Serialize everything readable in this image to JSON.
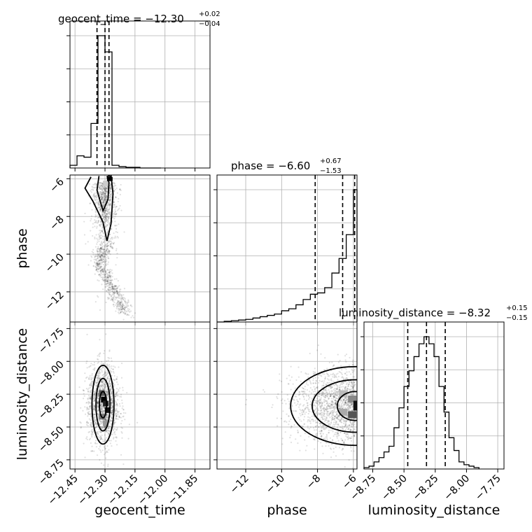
{
  "chart_data": {
    "type": "corner",
    "parameters": [
      {
        "name": "geocent_time",
        "axis_label": "geocent_time",
        "range": [
          -12.475,
          -11.775
        ],
        "ticks": [
          -12.45,
          -12.3,
          -12.15,
          -12.0,
          -11.85
        ],
        "tick_labels": [
          "−12.45",
          "−12.30",
          "−12.15",
          "−12.00",
          "−11.85"
        ],
        "title_main": "geocent_time = −12.30",
        "title_plus": "+0.02",
        "title_minus": "−0.04",
        "quantiles": [
          -12.34,
          -12.3,
          -12.28
        ],
        "histogram": {
          "edges": [
            -12.475,
            -12.44,
            -12.405,
            -12.37,
            -12.335,
            -12.3,
            -12.265,
            -12.23,
            -12.195,
            -12.16,
            -12.125,
            -12.09,
            -12.055,
            -12.02
          ],
          "counts": [
            0.02,
            0.09,
            0.08,
            0.33,
            0.98,
            0.86,
            0.02,
            0.01,
            0.005,
            0.005,
            0.0,
            0.0,
            0.0
          ]
        },
        "samples_center": -12.3,
        "samples_spread": 0.045
      },
      {
        "name": "phase",
        "axis_label": "phase",
        "range": [
          -13.6,
          -5.8
        ],
        "ticks": [
          -12,
          -10,
          -8,
          -6
        ],
        "tick_labels": [
          "−12",
          "−10",
          "−8",
          "−6"
        ],
        "title_main": "phase = −6.60",
        "title_plus": "+0.67",
        "title_minus": "−1.53",
        "quantiles": [
          -8.13,
          -6.6,
          -5.93
        ],
        "histogram": {
          "edges": [
            -13.6,
            -13.2,
            -12.8,
            -12.4,
            -12.0,
            -11.6,
            -11.2,
            -10.8,
            -10.4,
            -10.0,
            -9.6,
            -9.2,
            -8.8,
            -8.4,
            -8.0,
            -7.6,
            -7.2,
            -6.8,
            -6.4,
            -6.0,
            -5.8
          ],
          "counts": [
            0.0,
            0.005,
            0.01,
            0.015,
            0.02,
            0.03,
            0.04,
            0.05,
            0.06,
            0.085,
            0.1,
            0.13,
            0.17,
            0.21,
            0.22,
            0.26,
            0.37,
            0.48,
            0.66,
            1.0
          ]
        }
      },
      {
        "name": "luminosity_distance",
        "axis_label": "luminosity_distance",
        "range": [
          -8.82,
          -7.7
        ],
        "ticks": [
          -8.75,
          -8.5,
          -8.25,
          -8.0,
          -7.75
        ],
        "tick_labels": [
          "−8.75",
          "−8.50",
          "−8.25",
          "−8.00",
          "−7.75"
        ],
        "title_main": "luminosity_distance = −8.32",
        "title_plus": "+0.15",
        "title_minus": "−0.15",
        "quantiles": [
          -8.47,
          -8.32,
          -8.17
        ],
        "histogram": {
          "edges": [
            -8.82,
            -8.78,
            -8.74,
            -8.7,
            -8.66,
            -8.62,
            -8.58,
            -8.54,
            -8.5,
            -8.46,
            -8.42,
            -8.38,
            -8.34,
            -8.3,
            -8.26,
            -8.22,
            -8.18,
            -8.14,
            -8.1,
            -8.06,
            -8.02,
            -7.98,
            -7.94,
            -7.9
          ],
          "counts": [
            0.01,
            0.02,
            0.05,
            0.08,
            0.12,
            0.16,
            0.29,
            0.43,
            0.58,
            0.69,
            0.79,
            0.88,
            0.93,
            0.88,
            0.79,
            0.58,
            0.4,
            0.22,
            0.13,
            0.05,
            0.03,
            0.02,
            0.01
          ]
        }
      }
    ],
    "pairs": [
      {
        "x": "geocent_time",
        "y": "phase",
        "description": "banana-shaped correlated cloud, dense near phase −6 at geocent_time −12.30"
      },
      {
        "x": "geocent_time",
        "y": "luminosity_distance",
        "description": "compact elliptical cloud centered at (−12.30, −8.33)"
      },
      {
        "x": "phase",
        "y": "luminosity_distance",
        "description": "elongated cloud peaking at phase −6, luminosity_distance −8.35"
      }
    ],
    "grid": true
  }
}
